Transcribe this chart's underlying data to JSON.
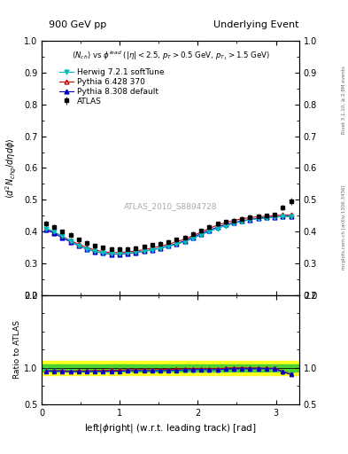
{
  "title_left": "900 GeV pp",
  "title_right": "Underlying Event",
  "ylabel_main": "$\\langle d^2 N_{chg}/d\\eta d\\phi \\rangle$",
  "ylabel_ratio": "Ratio to ATLAS",
  "xlabel": "left|$\\phi$right| (w.r.t. leading track) [rad]",
  "subtitle": "$\\langle N_{ch} \\rangle$ vs $\\phi^{lead}$ ($|\\eta| < 2.5$, $p_T > 0.5$ GeV, $p_{T_1} > 1.5$ GeV)",
  "watermark": "ATLAS_2010_S8894728",
  "right_label": "mcplots.cern.ch [arXiv:1306.3436]",
  "right_label2": "Rivet 3.1.10, ≥ 2.8M events",
  "ylim_main": [
    0.2,
    1.0
  ],
  "ylim_ratio": [
    0.5,
    2.0
  ],
  "xlim": [
    0,
    3.3
  ],
  "atlas_color": "black",
  "herwig_color": "#00BBBB",
  "pythia6_color": "#CC0000",
  "pythia8_color": "#0000CC",
  "legend_entries": [
    "ATLAS",
    "Herwig 7.2.1 softTune",
    "Pythia 6.428 370",
    "Pythia 8.308 default"
  ],
  "dphi": [
    0.052,
    0.157,
    0.262,
    0.367,
    0.471,
    0.576,
    0.681,
    0.785,
    0.89,
    0.995,
    1.1,
    1.204,
    1.309,
    1.414,
    1.518,
    1.623,
    1.728,
    1.833,
    1.937,
    2.042,
    2.147,
    2.251,
    2.356,
    2.461,
    2.566,
    2.67,
    2.775,
    2.88,
    2.984,
    3.089,
    3.194
  ],
  "val_atlas": [
    0.425,
    0.415,
    0.4,
    0.39,
    0.375,
    0.365,
    0.355,
    0.35,
    0.345,
    0.345,
    0.345,
    0.348,
    0.352,
    0.358,
    0.362,
    0.368,
    0.375,
    0.382,
    0.392,
    0.403,
    0.415,
    0.425,
    0.43,
    0.435,
    0.44,
    0.445,
    0.448,
    0.45,
    0.452,
    0.475,
    0.495
  ],
  "err_atlas": [
    0.008,
    0.007,
    0.007,
    0.007,
    0.007,
    0.007,
    0.007,
    0.007,
    0.007,
    0.007,
    0.007,
    0.007,
    0.007,
    0.007,
    0.007,
    0.007,
    0.007,
    0.007,
    0.007,
    0.007,
    0.007,
    0.007,
    0.007,
    0.007,
    0.007,
    0.007,
    0.007,
    0.007,
    0.007,
    0.008,
    0.01
  ],
  "val_herwig": [
    0.41,
    0.4,
    0.385,
    0.37,
    0.355,
    0.345,
    0.338,
    0.332,
    0.33,
    0.33,
    0.332,
    0.335,
    0.338,
    0.342,
    0.347,
    0.353,
    0.36,
    0.368,
    0.378,
    0.39,
    0.4,
    0.41,
    0.418,
    0.425,
    0.432,
    0.437,
    0.44,
    0.442,
    0.445,
    0.447,
    0.448
  ],
  "val_pythia6": [
    0.408,
    0.398,
    0.385,
    0.372,
    0.36,
    0.35,
    0.342,
    0.337,
    0.334,
    0.334,
    0.336,
    0.339,
    0.343,
    0.348,
    0.354,
    0.36,
    0.368,
    0.376,
    0.387,
    0.398,
    0.41,
    0.42,
    0.428,
    0.435,
    0.44,
    0.444,
    0.447,
    0.448,
    0.45,
    0.452,
    0.452
  ],
  "val_pythia8": [
    0.405,
    0.395,
    0.38,
    0.368,
    0.355,
    0.345,
    0.337,
    0.332,
    0.329,
    0.329,
    0.331,
    0.334,
    0.338,
    0.343,
    0.348,
    0.355,
    0.362,
    0.371,
    0.382,
    0.393,
    0.404,
    0.414,
    0.422,
    0.428,
    0.434,
    0.438,
    0.442,
    0.444,
    0.446,
    0.448,
    0.448
  ]
}
